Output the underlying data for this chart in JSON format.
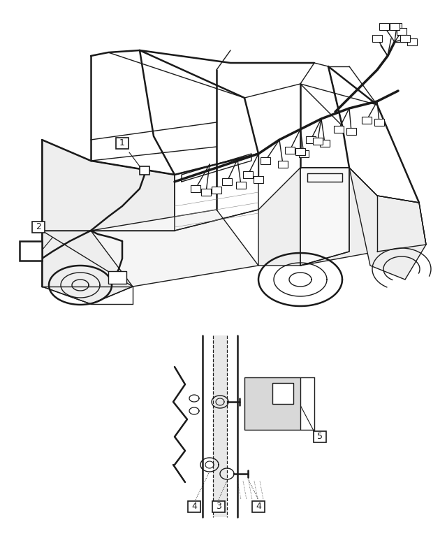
{
  "background_color": "#ffffff",
  "fig_width": 6.4,
  "fig_height": 7.77,
  "dpi": 100,
  "line_color": "#1a1a1a",
  "gray_fill": "#d8d8d8",
  "light_gray": "#eeeeee",
  "medium_gray": "#c8c8c8"
}
